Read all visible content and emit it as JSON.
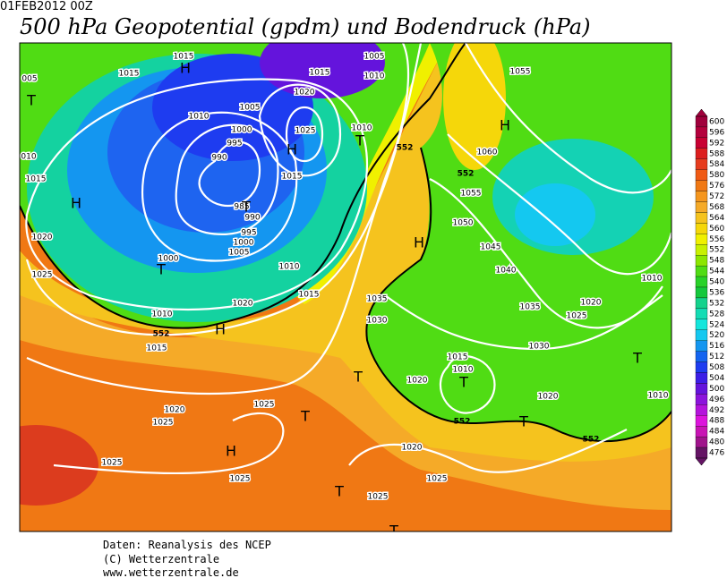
{
  "header": {
    "date": "01FEB2012 00Z",
    "title": "500 hPa Geopotential (gpdm) und Bodendruck (hPa)"
  },
  "colorbar": {
    "values": [
      600,
      596,
      592,
      588,
      584,
      580,
      576,
      572,
      568,
      564,
      560,
      556,
      552,
      548,
      544,
      540,
      536,
      532,
      528,
      524,
      520,
      516,
      512,
      508,
      504,
      500,
      496,
      492,
      488,
      484,
      480,
      476
    ],
    "colors": [
      "#a0003c",
      "#b4003c",
      "#c80032",
      "#dc1e1e",
      "#e63c1e",
      "#f05a14",
      "#f07814",
      "#f5961e",
      "#f5aa28",
      "#f5c31e",
      "#f5d70a",
      "#f0f000",
      "#c8f000",
      "#8ce600",
      "#50dc14",
      "#28d228",
      "#14c83c",
      "#14d28c",
      "#14dcb4",
      "#14e6dc",
      "#14c8f0",
      "#1496f0",
      "#1464f0",
      "#1e3cf0",
      "#3c1ee6",
      "#6414dc",
      "#8c14dc",
      "#b414dc",
      "#dc14dc",
      "#c814b4",
      "#a0148c",
      "#641464"
    ]
  },
  "map": {
    "isobar_labels": [
      "005",
      "1015",
      "1015",
      "1015",
      "1005",
      "1010",
      "1020",
      "1010",
      "1005",
      "1000",
      "995",
      "990",
      "1025",
      "1010",
      "010",
      "1015",
      "990",
      "1015",
      "985",
      "995",
      "1000",
      "1005",
      "1020",
      "1000",
      "1025",
      "1010",
      "1015",
      "1020",
      "1010",
      "1015",
      "1020",
      "1025",
      "1025",
      "1025",
      "1025",
      "1020",
      "1025",
      "1025",
      "1035",
      "1030",
      "1055",
      "1060",
      "1055",
      "1050",
      "1045",
      "1040",
      "1035",
      "1025",
      "1020",
      "1010",
      "1030",
      "1015",
      "1010",
      "1020",
      "1020",
      "1010"
    ],
    "contour_labels": [
      "552",
      "552",
      "552",
      "552",
      "552"
    ],
    "pressure_centers": [
      "H",
      "H",
      "H",
      "H",
      "H",
      "H",
      "H",
      "T",
      "T",
      "T",
      "T",
      "T",
      "T",
      "T",
      "T",
      "T",
      "T",
      "T"
    ]
  },
  "footer": [
    "Daten: Reanalysis des NCEP",
    "(C) Wetterzentrale",
    "www.wetterzentrale.de"
  ]
}
